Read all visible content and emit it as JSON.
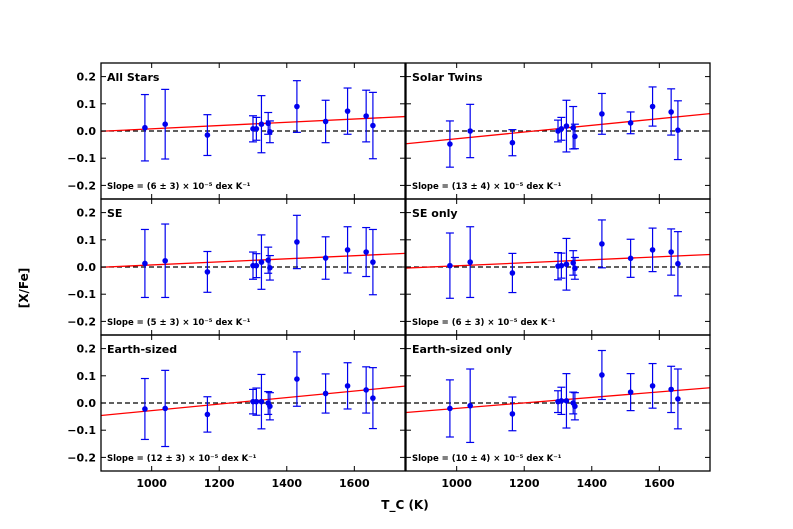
{
  "chart_data": {
    "type": "scatter",
    "xlabel": "T_C (K)",
    "ylabel": "[X/Fe]",
    "xlim": [
      850,
      1750
    ],
    "ylim": [
      -0.25,
      0.25
    ],
    "x_ticks": [
      1000,
      1200,
      1400,
      1600
    ],
    "y_ticks": [
      -0.2,
      -0.1,
      0.0,
      0.1,
      0.2
    ],
    "x_tick_labels": [
      "1000",
      "1200",
      "1400",
      "1600"
    ],
    "y_tick_labels": [
      "−0.2",
      "−0.1",
      "0.0",
      "0.1",
      "0.2"
    ],
    "colors": {
      "points": "#0000ee",
      "fit": "#ff0000",
      "reference": "#000000"
    },
    "panels": [
      {
        "title": "All Stars",
        "slope_label": "Slope = (6 ± 3) × 10⁻⁵ dex K⁻¹",
        "fit": {
          "x": [
            850,
            1750
          ],
          "y": [
            -0.001,
            0.053
          ]
        },
        "points": [
          {
            "x": 980,
            "y": 0.012,
            "err": 0.122
          },
          {
            "x": 1040,
            "y": 0.025,
            "err": 0.128
          },
          {
            "x": 1165,
            "y": -0.015,
            "err": 0.075
          },
          {
            "x": 1300,
            "y": 0.008,
            "err": 0.048
          },
          {
            "x": 1310,
            "y": 0.008,
            "err": 0.042
          },
          {
            "x": 1325,
            "y": 0.025,
            "err": 0.105
          },
          {
            "x": 1345,
            "y": 0.028,
            "err": 0.04
          },
          {
            "x": 1350,
            "y": -0.003,
            "err": 0.04
          },
          {
            "x": 1430,
            "y": 0.09,
            "err": 0.095
          },
          {
            "x": 1515,
            "y": 0.035,
            "err": 0.078
          },
          {
            "x": 1580,
            "y": 0.073,
            "err": 0.085
          },
          {
            "x": 1635,
            "y": 0.055,
            "err": 0.095
          },
          {
            "x": 1655,
            "y": 0.02,
            "err": 0.122
          }
        ]
      },
      {
        "title": "Solar Twins",
        "slope_label": "Slope = (13 ± 4) × 10⁻⁵ dex K⁻¹",
        "fit": {
          "x": [
            850,
            1750
          ],
          "y": [
            -0.047,
            0.064
          ]
        },
        "points": [
          {
            "x": 980,
            "y": -0.048,
            "err": 0.085
          },
          {
            "x": 1040,
            "y": 0.0,
            "err": 0.098
          },
          {
            "x": 1165,
            "y": -0.043,
            "err": 0.048
          },
          {
            "x": 1300,
            "y": 0.0,
            "err": 0.04
          },
          {
            "x": 1310,
            "y": 0.008,
            "err": 0.042
          },
          {
            "x": 1325,
            "y": 0.018,
            "err": 0.095
          },
          {
            "x": 1345,
            "y": 0.012,
            "err": 0.078
          },
          {
            "x": 1350,
            "y": -0.02,
            "err": 0.045
          },
          {
            "x": 1430,
            "y": 0.063,
            "err": 0.075
          },
          {
            "x": 1515,
            "y": 0.03,
            "err": 0.04
          },
          {
            "x": 1580,
            "y": 0.09,
            "err": 0.072
          },
          {
            "x": 1635,
            "y": 0.07,
            "err": 0.085
          },
          {
            "x": 1655,
            "y": 0.003,
            "err": 0.108
          }
        ]
      },
      {
        "title": "SE",
        "slope_label": "Slope = (5 ± 3) × 10⁻⁵ dex K⁻¹",
        "fit": {
          "x": [
            850,
            1750
          ],
          "y": [
            -0.001,
            0.05
          ]
        },
        "points": [
          {
            "x": 980,
            "y": 0.013,
            "err": 0.125
          },
          {
            "x": 1040,
            "y": 0.023,
            "err": 0.135
          },
          {
            "x": 1165,
            "y": -0.018,
            "err": 0.075
          },
          {
            "x": 1300,
            "y": 0.005,
            "err": 0.05
          },
          {
            "x": 1310,
            "y": 0.005,
            "err": 0.044
          },
          {
            "x": 1325,
            "y": 0.018,
            "err": 0.1
          },
          {
            "x": 1345,
            "y": 0.025,
            "err": 0.048
          },
          {
            "x": 1350,
            "y": -0.003,
            "err": 0.045
          },
          {
            "x": 1430,
            "y": 0.092,
            "err": 0.098
          },
          {
            "x": 1515,
            "y": 0.033,
            "err": 0.078
          },
          {
            "x": 1580,
            "y": 0.063,
            "err": 0.085
          },
          {
            "x": 1635,
            "y": 0.055,
            "err": 0.09
          },
          {
            "x": 1655,
            "y": 0.018,
            "err": 0.12
          }
        ]
      },
      {
        "title": "SE only",
        "slope_label": "Slope = (6 ± 3) × 10⁻⁵ dex K⁻¹",
        "fit": {
          "x": [
            850,
            1750
          ],
          "y": [
            -0.004,
            0.046
          ]
        },
        "points": [
          {
            "x": 980,
            "y": 0.005,
            "err": 0.12
          },
          {
            "x": 1040,
            "y": 0.018,
            "err": 0.13
          },
          {
            "x": 1165,
            "y": -0.022,
            "err": 0.072
          },
          {
            "x": 1300,
            "y": 0.003,
            "err": 0.05
          },
          {
            "x": 1310,
            "y": 0.005,
            "err": 0.046
          },
          {
            "x": 1325,
            "y": 0.01,
            "err": 0.095
          },
          {
            "x": 1345,
            "y": 0.015,
            "err": 0.045
          },
          {
            "x": 1350,
            "y": -0.005,
            "err": 0.04
          },
          {
            "x": 1430,
            "y": 0.085,
            "err": 0.088
          },
          {
            "x": 1515,
            "y": 0.032,
            "err": 0.07
          },
          {
            "x": 1580,
            "y": 0.063,
            "err": 0.08
          },
          {
            "x": 1635,
            "y": 0.055,
            "err": 0.085
          },
          {
            "x": 1655,
            "y": 0.012,
            "err": 0.118
          }
        ]
      },
      {
        "title": "Earth-sized",
        "slope_label": "Slope = (12 ± 3) × 10⁻⁵ dex K⁻¹",
        "fit": {
          "x": [
            850,
            1750
          ],
          "y": [
            -0.046,
            0.062
          ]
        },
        "points": [
          {
            "x": 980,
            "y": -0.022,
            "err": 0.112
          },
          {
            "x": 1040,
            "y": -0.02,
            "err": 0.14
          },
          {
            "x": 1165,
            "y": -0.042,
            "err": 0.065
          },
          {
            "x": 1300,
            "y": 0.005,
            "err": 0.045
          },
          {
            "x": 1310,
            "y": 0.005,
            "err": 0.05
          },
          {
            "x": 1325,
            "y": 0.005,
            "err": 0.1
          },
          {
            "x": 1345,
            "y": 0.0,
            "err": 0.042
          },
          {
            "x": 1350,
            "y": -0.012,
            "err": 0.05
          },
          {
            "x": 1430,
            "y": 0.088,
            "err": 0.1
          },
          {
            "x": 1515,
            "y": 0.035,
            "err": 0.072
          },
          {
            "x": 1580,
            "y": 0.063,
            "err": 0.085
          },
          {
            "x": 1635,
            "y": 0.048,
            "err": 0.085
          },
          {
            "x": 1655,
            "y": 0.018,
            "err": 0.112
          }
        ]
      },
      {
        "title": "Earth-sized only",
        "slope_label": "Slope = (10 ± 4) × 10⁻⁵ dex K⁻¹",
        "fit": {
          "x": [
            850,
            1750
          ],
          "y": [
            -0.035,
            0.056
          ]
        },
        "points": [
          {
            "x": 980,
            "y": -0.02,
            "err": 0.105
          },
          {
            "x": 1040,
            "y": -0.01,
            "err": 0.135
          },
          {
            "x": 1165,
            "y": -0.04,
            "err": 0.062
          },
          {
            "x": 1300,
            "y": 0.005,
            "err": 0.04
          },
          {
            "x": 1310,
            "y": 0.008,
            "err": 0.05
          },
          {
            "x": 1325,
            "y": 0.008,
            "err": 0.1
          },
          {
            "x": 1345,
            "y": 0.0,
            "err": 0.04
          },
          {
            "x": 1350,
            "y": -0.012,
            "err": 0.05
          },
          {
            "x": 1430,
            "y": 0.103,
            "err": 0.09
          },
          {
            "x": 1515,
            "y": 0.04,
            "err": 0.068
          },
          {
            "x": 1580,
            "y": 0.063,
            "err": 0.082
          },
          {
            "x": 1635,
            "y": 0.05,
            "err": 0.085
          },
          {
            "x": 1655,
            "y": 0.015,
            "err": 0.11
          }
        ]
      }
    ]
  }
}
